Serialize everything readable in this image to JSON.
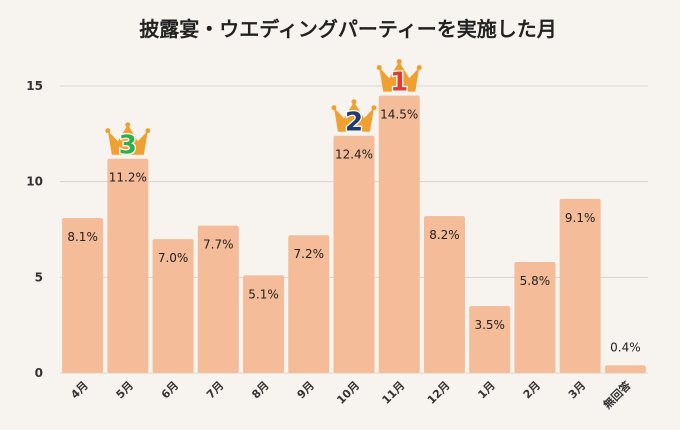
{
  "chart_data": {
    "type": "bar",
    "title": "披露宴・ウエディングパーティーを実施した月",
    "categories": [
      "4月",
      "5月",
      "6月",
      "7月",
      "8月",
      "9月",
      "10月",
      "11月",
      "12月",
      "1月",
      "2月",
      "3月",
      "無回答"
    ],
    "values": [
      8.1,
      11.2,
      7.0,
      7.7,
      5.1,
      7.2,
      12.4,
      14.5,
      8.2,
      3.5,
      5.8,
      9.1,
      0.4
    ],
    "labels": [
      "8.1%",
      "11.2%",
      "7.0%",
      "7.7%",
      "5.1%",
      "7.2%",
      "12.4%",
      "14.5%",
      "8.2%",
      "3.5%",
      "5.8%",
      "9.1%",
      "0.4%"
    ],
    "ylim": [
      0,
      15
    ],
    "yticks": [
      "0",
      "5",
      "10",
      "15"
    ],
    "grid": true,
    "rank_badges": [
      {
        "category": "11月",
        "rank": "1",
        "color": "#e53935"
      },
      {
        "category": "10月",
        "rank": "2",
        "color": "#1f3a6e"
      },
      {
        "category": "5月",
        "rank": "3",
        "color": "#2eb04a"
      }
    ]
  },
  "colors": {
    "bar": "#f4bc98",
    "grid": "#d9d4cf",
    "crown": "#f0a030"
  }
}
